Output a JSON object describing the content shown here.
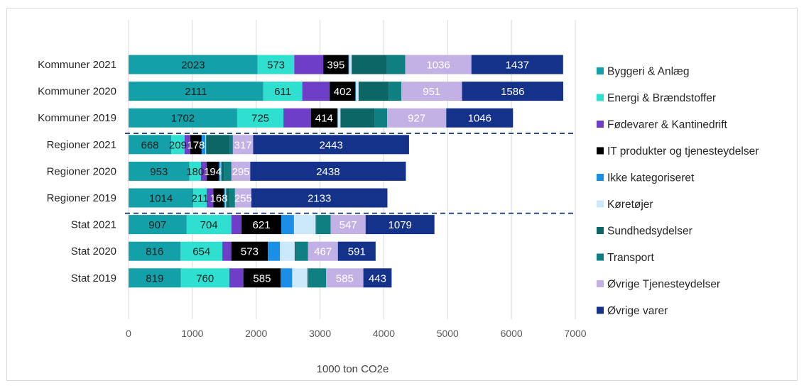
{
  "chart_data": {
    "type": "bar",
    "orientation": "horizontal",
    "stacked": true,
    "title": "",
    "xlabel": "1000 ton CO2e",
    "ylabel": "",
    "xlim": [
      0,
      7000
    ],
    "xticks": [
      0,
      1000,
      2000,
      3000,
      4000,
      5000,
      6000,
      7000
    ],
    "grid": "vertical",
    "legend_position": "right",
    "categories": [
      "Kommuner 2021",
      "Kommuner 2020",
      "Kommuner 2019",
      "Regioner 2021",
      "Regioner 2020",
      "Regioner 2019",
      "Stat 2021",
      "Stat 2020",
      "Stat 2019"
    ],
    "series": [
      {
        "name": "Byggeri & Anlæg",
        "color": "#13a0a8",
        "label_color": "#1f1f1f",
        "values": [
          2023,
          2111,
          1702,
          668,
          953,
          1014,
          907,
          816,
          819
        ],
        "labels": [
          "2023",
          "2111",
          "1702",
          "668",
          "953",
          "1014",
          "907",
          "816",
          "819"
        ]
      },
      {
        "name": "Energi & Brændstoffer",
        "color": "#2fe0d0",
        "label_color": "#1f1f1f",
        "values": [
          573,
          611,
          725,
          209,
          180,
          211,
          704,
          654,
          760
        ],
        "labels": [
          "573",
          "611",
          "725",
          "209",
          "180",
          "211",
          "704",
          "654",
          "760"
        ]
      },
      {
        "name": "Fødevarer & Kantinedrift",
        "color": "#6f3ec8",
        "label_color": "#ffffff",
        "values": [
          455,
          430,
          430,
          90,
          90,
          105,
          160,
          140,
          220
        ],
        "labels": [
          "",
          "",
          "",
          "",
          "",
          "",
          "",
          "",
          ""
        ]
      },
      {
        "name": "IT produkter og tjenesteydelser",
        "color": "#000000",
        "label_color": "#ffffff",
        "values": [
          395,
          402,
          414,
          178,
          194,
          168,
          621,
          573,
          585
        ],
        "labels": [
          "395",
          "402",
          "414",
          "178",
          "194",
          "168",
          "621",
          "573",
          "585"
        ]
      },
      {
        "name": "Ikke kategoriseret",
        "color": "#1b8ee8",
        "label_color": "#ffffff",
        "values": [
          10,
          10,
          10,
          60,
          25,
          20,
          200,
          190,
          180
        ],
        "labels": [
          "",
          "",
          "",
          "",
          "",
          "",
          "",
          "",
          ""
        ]
      },
      {
        "name": "Køretøjer",
        "color": "#cce8fb",
        "label_color": "#1f1f1f",
        "values": [
          40,
          40,
          40,
          10,
          10,
          10,
          340,
          230,
          240
        ],
        "labels": [
          "",
          "",
          "",
          "",
          "",
          "",
          "",
          "",
          ""
        ]
      },
      {
        "name": "Sundhedsydelser",
        "color": "#0b6665",
        "label_color": "#ffffff",
        "values": [
          550,
          470,
          530,
          370,
          40,
          60,
          10,
          20,
          20
        ],
        "labels": [
          "",
          "",
          "",
          "",
          "",
          "",
          "",
          "",
          ""
        ]
      },
      {
        "name": "Transport",
        "color": "#0f7f82",
        "label_color": "#ffffff",
        "values": [
          290,
          200,
          200,
          50,
          120,
          80,
          225,
          190,
          270
        ],
        "labels": [
          "",
          "",
          "",
          "",
          "",
          "",
          "",
          "",
          ""
        ]
      },
      {
        "name": "Øvrige Tjenesteydelser",
        "color": "#c3b1e6",
        "label_color": "#ffffff",
        "values": [
          1036,
          951,
          927,
          317,
          295,
          255,
          547,
          467,
          585
        ],
        "labels": [
          "1036",
          "951",
          "927",
          "317",
          "295",
          "255",
          "547",
          "467",
          "585"
        ]
      },
      {
        "name": "Øvrige varer",
        "color": "#14328a",
        "label_color": "#ffffff",
        "values": [
          1437,
          1586,
          1046,
          2443,
          2438,
          2133,
          1079,
          591,
          443
        ],
        "labels": [
          "1437",
          "1586",
          "1046",
          "2443",
          "2438",
          "2133",
          "1079",
          "591",
          "443"
        ]
      }
    ],
    "separators_after_index": [
      2,
      5
    ]
  }
}
